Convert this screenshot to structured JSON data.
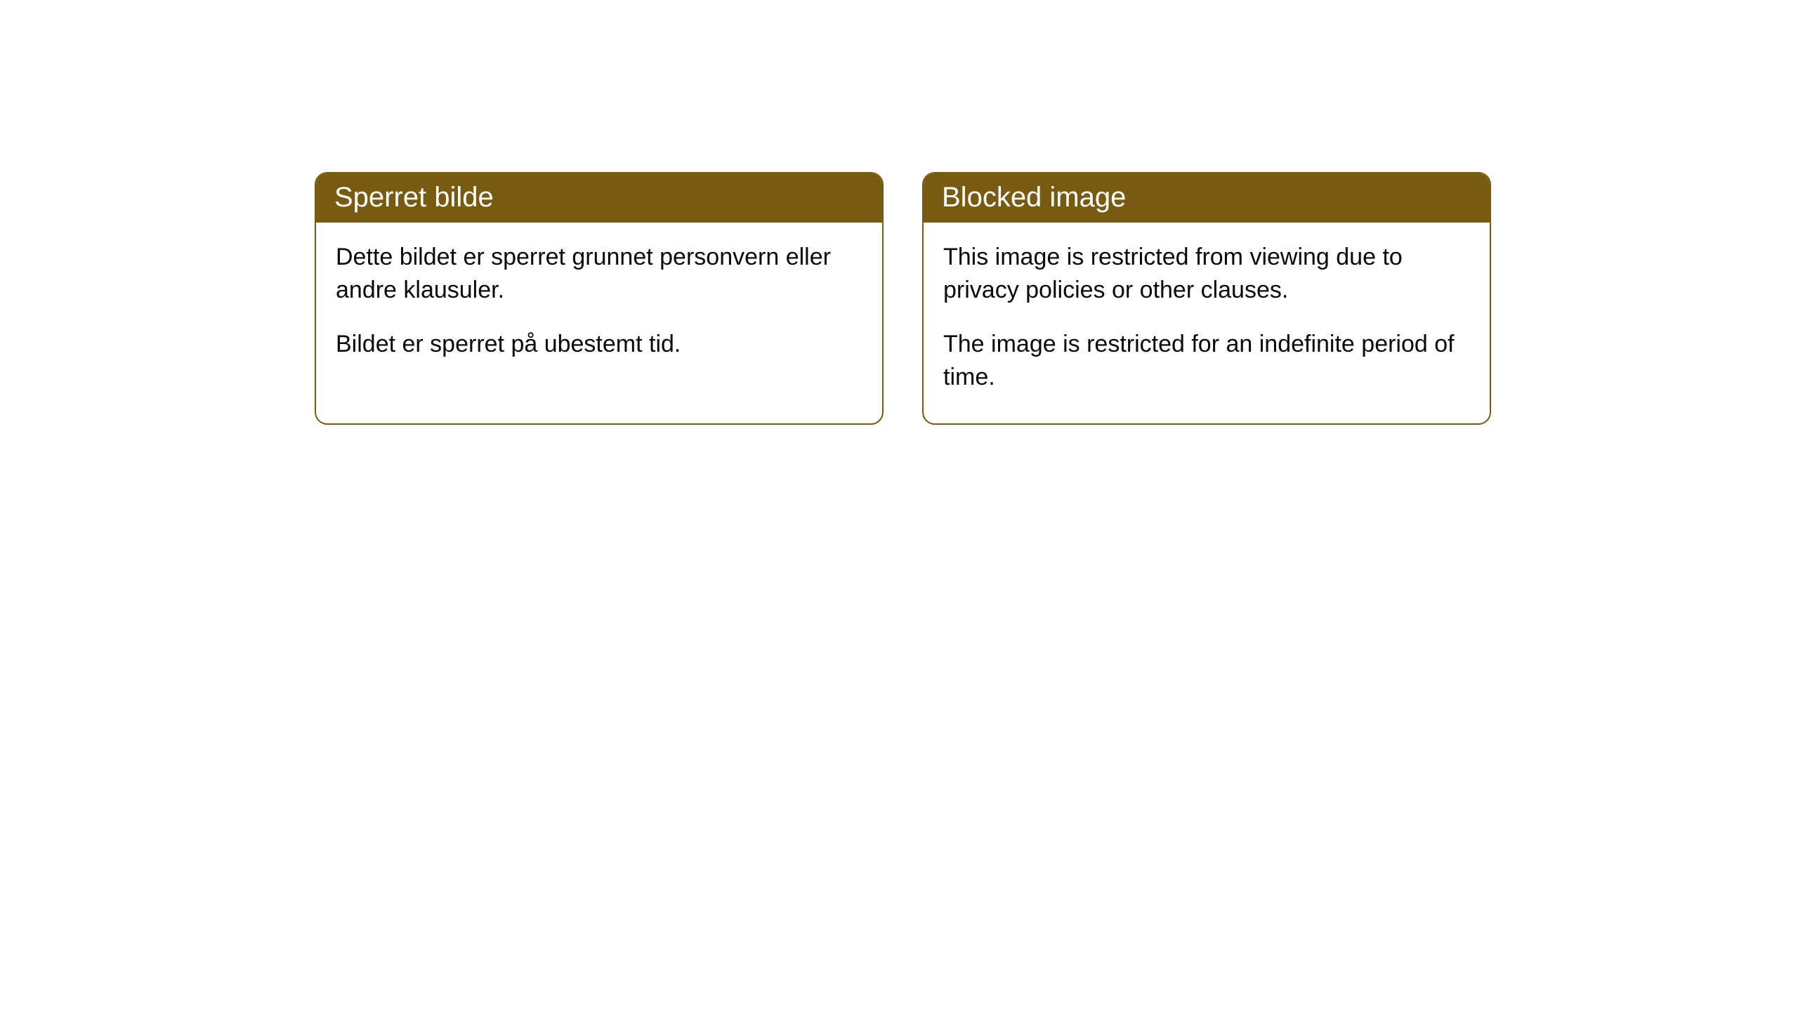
{
  "cards": [
    {
      "title": "Sperret bilde",
      "paragraph1": "Dette bildet er sperret grunnet personvern eller andre klausuler.",
      "paragraph2": "Bildet er sperret på ubestemt tid."
    },
    {
      "title": "Blocked image",
      "paragraph1": "This image is restricted from viewing due to privacy policies or other clauses.",
      "paragraph2": "The image is restricted for an indefinite period of time."
    }
  ],
  "styling": {
    "header_bg_color": "#785a11",
    "header_text_color": "#ffffff",
    "border_color": "#785a11",
    "body_text_color": "#0a0a0a",
    "background_color": "#ffffff",
    "border_radius": 18,
    "header_fontsize": 40,
    "body_fontsize": 34
  }
}
